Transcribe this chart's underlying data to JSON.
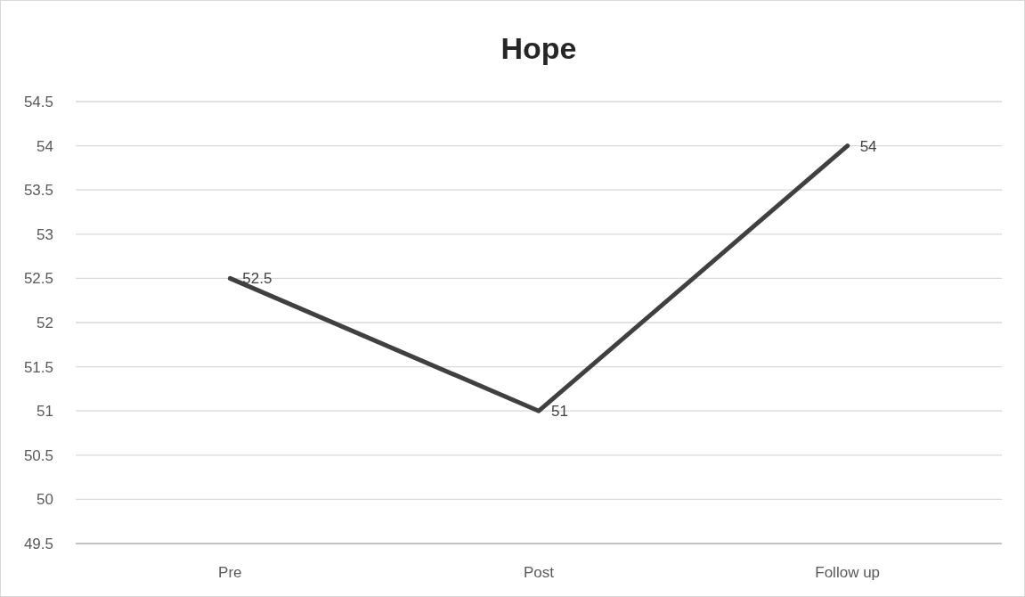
{
  "chart_data": {
    "type": "line",
    "title": "Hope",
    "categories": [
      "Pre",
      "Post",
      "Follow up"
    ],
    "series": [
      {
        "color": "#404040",
        "values": [
          52.5,
          51,
          54
        ]
      }
    ],
    "ylim": [
      49.5,
      54.5
    ],
    "yticks": [
      49.5,
      50,
      50.5,
      51,
      51.5,
      52,
      52.5,
      53,
      53.5,
      54,
      54.5
    ],
    "grid": "y",
    "data_labels": true
  }
}
